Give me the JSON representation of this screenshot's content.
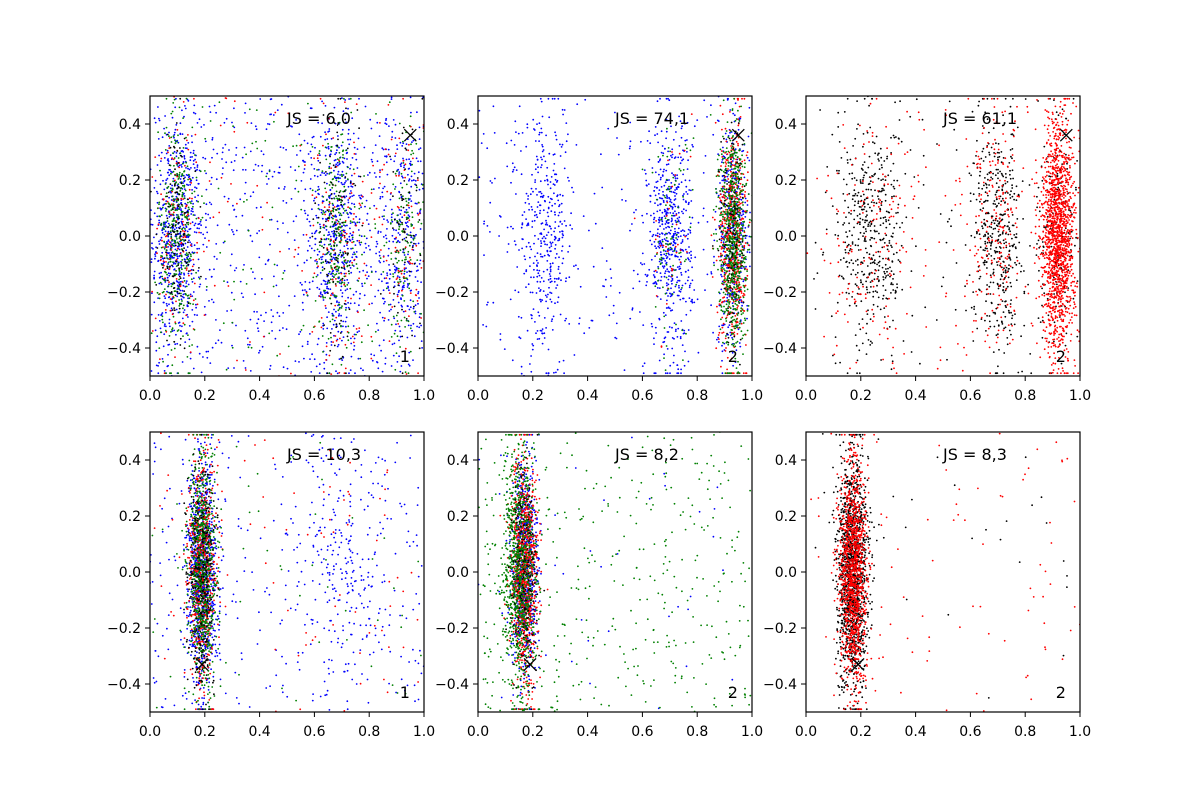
{
  "chart_data": [
    {
      "type": "scatter",
      "annotation": "JS = 6,0",
      "corner_label": "1",
      "xlim": [
        0,
        1
      ],
      "ylim": [
        -0.5,
        0.5
      ],
      "xticks": [
        "0.0",
        "0.2",
        "0.4",
        "0.6",
        "0.8",
        "1.0"
      ],
      "yticks": [
        "-0.4",
        "-0.2",
        "0.0",
        "0.2",
        "0.4"
      ],
      "marker": {
        "x": 0.95,
        "y": 0.36
      },
      "series": [
        {
          "color": "#0000ff",
          "clusters": [
            {
              "cx": 0.1,
              "sx": 0.045,
              "n": 520
            },
            {
              "cx": 0.68,
              "sx": 0.05,
              "n": 420
            },
            {
              "cx": 0.92,
              "sx": 0.05,
              "n": 220
            },
            {
              "uniform": true,
              "n": 700
            }
          ]
        },
        {
          "color": "#ff0000",
          "clusters": [
            {
              "cx": 0.1,
              "sx": 0.04,
              "n": 120
            },
            {
              "cx": 0.68,
              "sx": 0.05,
              "n": 100
            },
            {
              "cx": 0.92,
              "sx": 0.04,
              "n": 60
            },
            {
              "uniform": true,
              "n": 120
            }
          ]
        },
        {
          "color": "#008000",
          "clusters": [
            {
              "cx": 0.1,
              "sx": 0.035,
              "n": 330
            },
            {
              "cx": 0.68,
              "sx": 0.04,
              "n": 250
            },
            {
              "cx": 0.93,
              "sx": 0.035,
              "n": 130
            },
            {
              "uniform": true,
              "n": 100
            }
          ]
        },
        {
          "color": "#000000",
          "clusters": [
            {
              "cx": 0.1,
              "sx": 0.035,
              "n": 120
            },
            {
              "cx": 0.68,
              "sx": 0.04,
              "n": 100
            },
            {
              "cx": 0.93,
              "sx": 0.035,
              "n": 60
            }
          ]
        }
      ]
    },
    {
      "type": "scatter",
      "annotation": "JS = 74,1",
      "corner_label": "2",
      "xlim": [
        0,
        1
      ],
      "ylim": [
        -0.5,
        0.5
      ],
      "xticks": [
        "0.0",
        "0.2",
        "0.4",
        "0.6",
        "0.8",
        "1.0"
      ],
      "yticks": [
        "-0.4",
        "-0.2",
        "0.0",
        "0.2",
        "0.4"
      ],
      "marker": {
        "x": 0.95,
        "y": 0.36
      },
      "series": [
        {
          "color": "#0000ff",
          "clusters": [
            {
              "cx": 0.24,
              "sx": 0.045,
              "n": 330
            },
            {
              "cx": 0.7,
              "sx": 0.04,
              "n": 520
            },
            {
              "cx": 0.93,
              "sx": 0.03,
              "n": 400
            },
            {
              "uniform": true,
              "n": 260
            }
          ]
        },
        {
          "color": "#ff0000",
          "clusters": [
            {
              "cx": 0.93,
              "sx": 0.025,
              "n": 560
            },
            {
              "cx": 0.7,
              "sx": 0.04,
              "n": 40
            }
          ]
        },
        {
          "color": "#008000",
          "clusters": [
            {
              "cx": 0.93,
              "sx": 0.025,
              "n": 700
            },
            {
              "cx": 0.7,
              "sx": 0.04,
              "n": 90
            }
          ]
        },
        {
          "color": "#000000",
          "clusters": [
            {
              "cx": 0.93,
              "sx": 0.025,
              "n": 120
            }
          ]
        }
      ]
    },
    {
      "type": "scatter",
      "annotation": "JS = 61,1",
      "corner_label": "2",
      "xlim": [
        0,
        1
      ],
      "ylim": [
        -0.5,
        0.5
      ],
      "xticks": [
        "0.0",
        "0.2",
        "0.4",
        "0.6",
        "0.8",
        "1.0"
      ],
      "yticks": [
        "-0.4",
        "-0.2",
        "0.0",
        "0.2",
        "0.4"
      ],
      "marker": {
        "x": 0.95,
        "y": 0.36
      },
      "series": [
        {
          "color": "#000000",
          "clusters": [
            {
              "cx": 0.24,
              "sx": 0.06,
              "n": 420
            },
            {
              "cx": 0.7,
              "sx": 0.045,
              "n": 420
            },
            {
              "cx": 0.92,
              "sx": 0.035,
              "n": 160
            },
            {
              "uniform": true,
              "n": 120
            }
          ]
        },
        {
          "color": "#ff0000",
          "clusters": [
            {
              "cx": 0.92,
              "sx": 0.03,
              "n": 1500
            },
            {
              "cx": 0.7,
              "sx": 0.05,
              "n": 180
            },
            {
              "cx": 0.25,
              "sx": 0.07,
              "n": 110
            },
            {
              "uniform": true,
              "n": 160
            }
          ]
        }
      ]
    },
    {
      "type": "scatter",
      "annotation": "JS = 10,3",
      "corner_label": "1",
      "xlim": [
        0,
        1
      ],
      "ylim": [
        -0.5,
        0.5
      ],
      "xticks": [
        "0.0",
        "0.2",
        "0.4",
        "0.6",
        "0.8",
        "1.0"
      ],
      "yticks": [
        "-0.4",
        "-0.2",
        "0.0",
        "0.2",
        "0.4"
      ],
      "marker": {
        "x": 0.19,
        "y": -0.33
      },
      "series": [
        {
          "color": "#0000ff",
          "clusters": [
            {
              "cx": 0.19,
              "sx": 0.025,
              "n": 900
            },
            {
              "cx": 0.72,
              "sx": 0.08,
              "n": 180
            },
            {
              "uniform": true,
              "n": 320
            }
          ]
        },
        {
          "color": "#ff0000",
          "clusters": [
            {
              "cx": 0.19,
              "sx": 0.025,
              "n": 600
            },
            {
              "uniform": true,
              "n": 90
            }
          ]
        },
        {
          "color": "#008000",
          "clusters": [
            {
              "cx": 0.19,
              "sx": 0.025,
              "n": 750
            },
            {
              "uniform": true,
              "n": 60
            }
          ]
        },
        {
          "color": "#000000",
          "clusters": [
            {
              "cx": 0.19,
              "sx": 0.025,
              "n": 300
            }
          ]
        }
      ]
    },
    {
      "type": "scatter",
      "annotation": "JS = 8,2",
      "corner_label": "2",
      "xlim": [
        0,
        1
      ],
      "ylim": [
        -0.5,
        0.5
      ],
      "xticks": [
        "0.0",
        "0.2",
        "0.4",
        "0.6",
        "0.8",
        "1.0"
      ],
      "yticks": [
        "-0.4",
        "-0.2",
        "0.0",
        "0.2",
        "0.4"
      ],
      "marker": {
        "x": 0.19,
        "y": -0.33
      },
      "series": [
        {
          "color": "#0000ff",
          "clusters": [
            {
              "cx": 0.17,
              "sx": 0.025,
              "n": 700
            },
            {
              "uniform": true,
              "n": 40
            }
          ]
        },
        {
          "color": "#ff0000",
          "clusters": [
            {
              "cx": 0.17,
              "sx": 0.025,
              "n": 900
            }
          ]
        },
        {
          "color": "#008000",
          "clusters": [
            {
              "cx": 0.15,
              "sx": 0.03,
              "n": 900
            },
            {
              "uniform": true,
              "n": 420
            }
          ]
        },
        {
          "color": "#000000",
          "clusters": [
            {
              "cx": 0.17,
              "sx": 0.025,
              "n": 200
            }
          ]
        }
      ]
    },
    {
      "type": "scatter",
      "annotation": "JS = 8,3",
      "corner_label": "2",
      "xlim": [
        0,
        1
      ],
      "ylim": [
        -0.5,
        0.5
      ],
      "xticks": [
        "0.0",
        "0.2",
        "0.4",
        "0.6",
        "0.8",
        "1.0"
      ],
      "yticks": [
        "-0.4",
        "-0.2",
        "0.0",
        "0.2",
        "0.4"
      ],
      "marker": {
        "x": 0.19,
        "y": -0.33
      },
      "series": [
        {
          "color": "#000000",
          "clusters": [
            {
              "cx": 0.17,
              "sx": 0.028,
              "n": 1400
            },
            {
              "uniform": true,
              "n": 30
            }
          ]
        },
        {
          "color": "#ff0000",
          "clusters": [
            {
              "cx": 0.17,
              "sx": 0.025,
              "n": 1200
            },
            {
              "uniform": true,
              "n": 90
            }
          ]
        }
      ]
    }
  ]
}
